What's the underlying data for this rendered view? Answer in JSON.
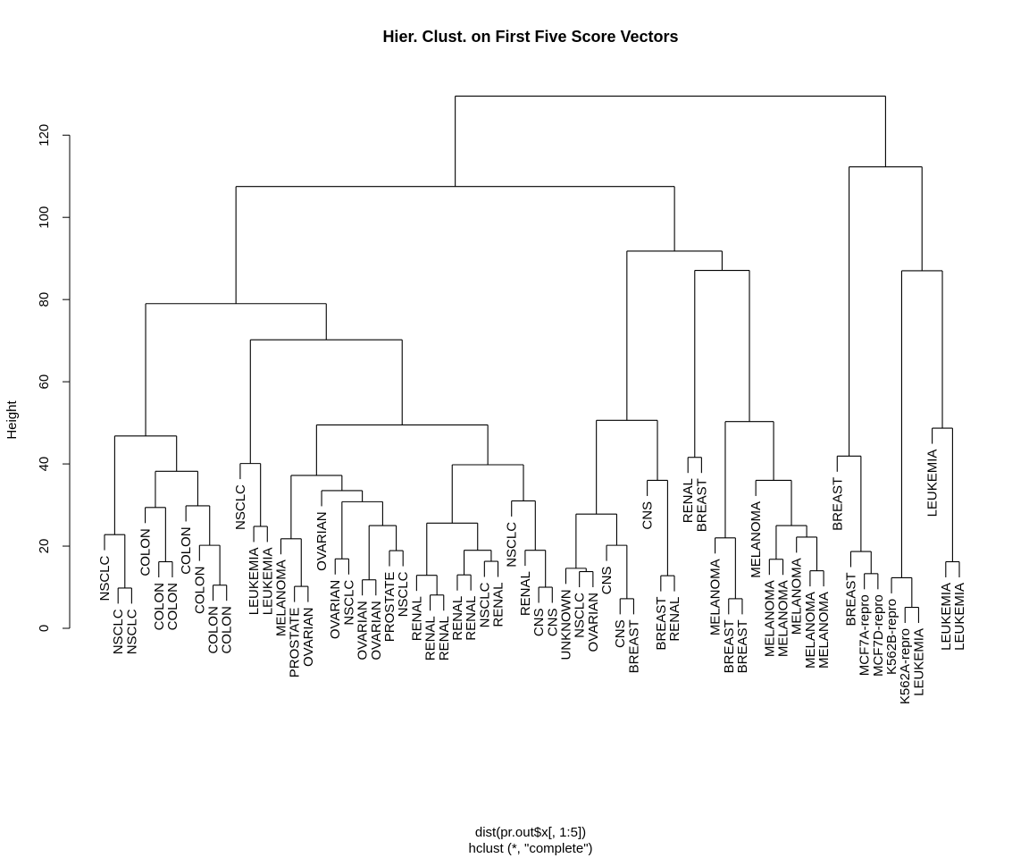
{
  "chart_data": {
    "type": "dendrogram",
    "title": "Hier. Clust. on First Five Score Vectors",
    "ylabel": "Height",
    "xlabel": "dist(pr.out$x[, 1:5])",
    "sublabel": "hclust (*, \"complete\")",
    "ylim": [
      0,
      135
    ],
    "yticks": [
      0,
      20,
      40,
      60,
      80,
      100,
      120
    ],
    "grid": false,
    "hang": 3.8,
    "tree": {
      "h": 129.5,
      "c": [
        {
          "h": 107.5,
          "c": [
            {
              "h": 79.0,
              "c": [
                {
                  "h": 46.8,
                  "c": [
                    {
                      "h": 22.8,
                      "c": [
                        {
                          "l": "NSCLC"
                        },
                        {
                          "h": 9.8,
                          "c": [
                            {
                              "l": "NSCLC"
                            },
                            {
                              "l": "NSCLC"
                            }
                          ]
                        }
                      ]
                    },
                    {
                      "h": 38.2,
                      "c": [
                        {
                          "h": 29.4,
                          "c": [
                            {
                              "l": "COLON"
                            },
                            {
                              "h": 16.2,
                              "c": [
                                {
                                  "l": "COLON"
                                },
                                {
                                  "l": "COLON"
                                }
                              ]
                            }
                          ]
                        },
                        {
                          "h": 29.8,
                          "c": [
                            {
                              "l": "COLON"
                            },
                            {
                              "h": 20.2,
                              "c": [
                                {
                                  "l": "COLON"
                                },
                                {
                                  "h": 10.5,
                                  "c": [
                                    {
                                      "l": "COLON"
                                    },
                                    {
                                      "l": "COLON"
                                    }
                                  ]
                                }
                              ]
                            }
                          ]
                        }
                      ]
                    }
                  ]
                },
                {
                  "h": 70.2,
                  "c": [
                    {
                      "h": 40.1,
                      "c": [
                        {
                          "l": "NSCLC"
                        },
                        {
                          "h": 24.8,
                          "c": [
                            {
                              "l": "LEUKEMIA"
                            },
                            {
                              "l": "LEUKEMIA"
                            }
                          ]
                        }
                      ]
                    },
                    {
                      "h": 49.5,
                      "c": [
                        {
                          "h": 37.2,
                          "c": [
                            {
                              "h": 21.8,
                              "c": [
                                {
                                  "l": "MELANOMA"
                                },
                                {
                                  "h": 10.2,
                                  "c": [
                                    {
                                      "l": "PROSTATE"
                                    },
                                    {
                                      "l": "OVARIAN"
                                    }
                                  ]
                                }
                              ]
                            },
                            {
                              "h": 33.5,
                              "c": [
                                {
                                  "l": "OVARIAN"
                                },
                                {
                                  "h": 30.8,
                                  "c": [
                                    {
                                      "h": 16.9,
                                      "c": [
                                        {
                                          "l": "OVARIAN"
                                        },
                                        {
                                          "l": "NSCLC"
                                        }
                                      ]
                                    },
                                    {
                                      "h": 25.0,
                                      "c": [
                                        {
                                          "h": 11.8,
                                          "c": [
                                            {
                                              "l": "OVARIAN"
                                            },
                                            {
                                              "l": "OVARIAN"
                                            }
                                          ]
                                        },
                                        {
                                          "h": 18.9,
                                          "c": [
                                            {
                                              "l": "PROSTATE"
                                            },
                                            {
                                              "l": "NSCLC"
                                            }
                                          ]
                                        }
                                      ]
                                    }
                                  ]
                                }
                              ]
                            }
                          ]
                        },
                        {
                          "h": 39.8,
                          "c": [
                            {
                              "h": 25.6,
                              "c": [
                                {
                                  "h": 12.9,
                                  "c": [
                                    {
                                      "l": "RENAL"
                                    },
                                    {
                                      "h": 8.1,
                                      "c": [
                                        {
                                          "l": "RENAL"
                                        },
                                        {
                                          "l": "RENAL"
                                        }
                                      ]
                                    }
                                  ]
                                },
                                {
                                  "h": 19.0,
                                  "c": [
                                    {
                                      "h": 13.0,
                                      "c": [
                                        {
                                          "l": "RENAL"
                                        },
                                        {
                                          "l": "RENAL"
                                        }
                                      ]
                                    },
                                    {
                                      "h": 16.3,
                                      "c": [
                                        {
                                          "l": "NSCLC"
                                        },
                                        {
                                          "l": "RENAL"
                                        }
                                      ]
                                    }
                                  ]
                                }
                              ]
                            },
                            {
                              "h": 31.0,
                              "c": [
                                {
                                  "l": "NSCLC"
                                },
                                {
                                  "h": 19.0,
                                  "c": [
                                    {
                                      "l": "RENAL"
                                    },
                                    {
                                      "h": 10.0,
                                      "c": [
                                        {
                                          "l": "CNS"
                                        },
                                        {
                                          "l": "CNS"
                                        }
                                      ]
                                    }
                                  ]
                                }
                              ]
                            }
                          ]
                        }
                      ]
                    }
                  ]
                }
              ]
            },
            {
              "h": 91.8,
              "c": [
                {
                  "h": 50.6,
                  "c": [
                    {
                      "h": 27.8,
                      "c": [
                        {
                          "h": 14.6,
                          "c": [
                            {
                              "l": "UNKNOWN"
                            },
                            {
                              "h": 13.8,
                              "c": [
                                {
                                  "l": "NSCLC"
                                },
                                {
                                  "l": "OVARIAN"
                                }
                              ]
                            }
                          ]
                        },
                        {
                          "h": 20.2,
                          "c": [
                            {
                              "l": "CNS"
                            },
                            {
                              "h": 7.2,
                              "c": [
                                {
                                  "l": "CNS"
                                },
                                {
                                  "l": "BREAST"
                                }
                              ]
                            }
                          ]
                        }
                      ]
                    },
                    {
                      "h": 36.0,
                      "c": [
                        {
                          "l": "CNS"
                        },
                        {
                          "h": 12.8,
                          "c": [
                            {
                              "l": "BREAST"
                            },
                            {
                              "l": "RENAL"
                            }
                          ]
                        }
                      ]
                    }
                  ]
                },
                {
                  "h": 87.1,
                  "c": [
                    {
                      "h": 41.6,
                      "c": [
                        {
                          "l": "RENAL"
                        },
                        {
                          "l": "BREAST"
                        }
                      ]
                    },
                    {
                      "h": 50.3,
                      "c": [
                        {
                          "h": 22.0,
                          "c": [
                            {
                              "l": "MELANOMA"
                            },
                            {
                              "h": 7.2,
                              "c": [
                                {
                                  "l": "BREAST"
                                },
                                {
                                  "l": "BREAST"
                                }
                              ]
                            }
                          ]
                        },
                        {
                          "h": 36.0,
                          "c": [
                            {
                              "l": "MELANOMA"
                            },
                            {
                              "h": 25.0,
                              "c": [
                                {
                                  "h": 16.8,
                                  "c": [
                                    {
                                      "l": "MELANOMA"
                                    },
                                    {
                                      "l": "MELANOMA"
                                    }
                                  ]
                                },
                                {
                                  "h": 22.2,
                                  "c": [
                                    {
                                      "l": "MELANOMA"
                                    },
                                    {
                                      "h": 14.0,
                                      "c": [
                                        {
                                          "l": "MELANOMA"
                                        },
                                        {
                                          "l": "MELANOMA"
                                        }
                                      ]
                                    }
                                  ]
                                }
                              ]
                            }
                          ]
                        }
                      ]
                    }
                  ]
                }
              ]
            }
          ]
        },
        {
          "h": 112.3,
          "c": [
            {
              "h": 41.9,
              "c": [
                {
                  "l": "BREAST"
                },
                {
                  "h": 18.7,
                  "c": [
                    {
                      "l": "BREAST"
                    },
                    {
                      "h": 13.3,
                      "c": [
                        {
                          "l": "MCF7A-repro"
                        },
                        {
                          "l": "MCF7D-repro"
                        }
                      ]
                    }
                  ]
                }
              ]
            },
            {
              "h": 87.0,
              "c": [
                {
                  "h": 12.3,
                  "c": [
                    {
                      "l": "K562B-repro"
                    },
                    {
                      "h": 5.1,
                      "c": [
                        {
                          "l": "K562A-repro"
                        },
                        {
                          "l": "LEUKEMIA"
                        }
                      ]
                    }
                  ]
                },
                {
                  "h": 48.7,
                  "c": [
                    {
                      "l": "LEUKEMIA"
                    },
                    {
                      "h": 16.2,
                      "c": [
                        {
                          "l": "LEUKEMIA"
                        },
                        {
                          "l": "LEUKEMIA"
                        }
                      ]
                    }
                  ]
                }
              ]
            }
          ]
        }
      ]
    }
  }
}
